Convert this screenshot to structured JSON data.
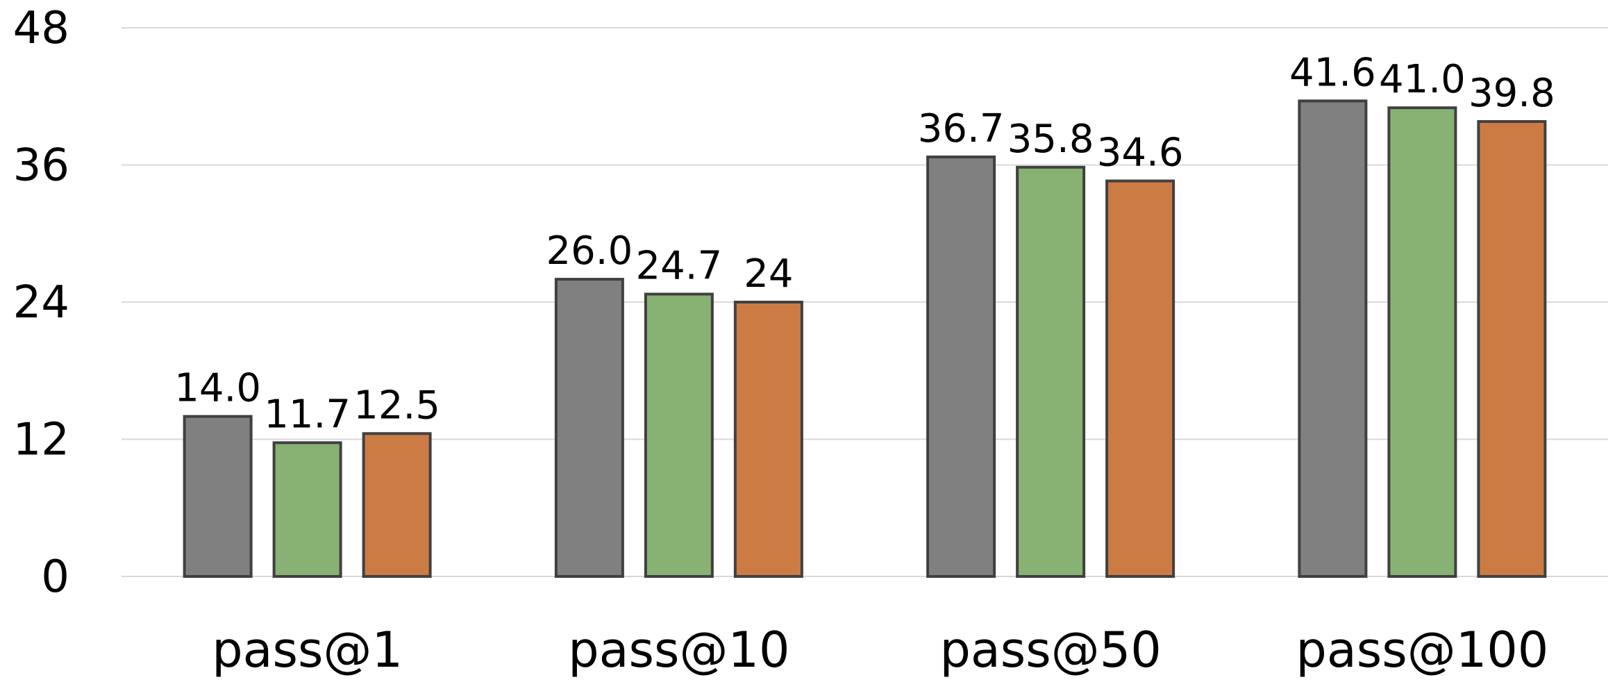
{
  "chart_data": {
    "type": "bar",
    "title": "",
    "xlabel": "",
    "ylabel": "",
    "categories": [
      "pass@1",
      "pass@10",
      "pass@50",
      "pass@100"
    ],
    "series": [
      {
        "values": [
          14.0,
          26.0,
          36.7,
          41.6
        ],
        "labels": [
          "14.0",
          "26.0",
          "36.7",
          "41.6"
        ],
        "color": "#808080"
      },
      {
        "values": [
          11.7,
          24.7,
          35.8,
          41.0
        ],
        "labels": [
          "11.7",
          "24.7",
          "35.8",
          "41.0"
        ],
        "color": "#88B174"
      },
      {
        "values": [
          12.5,
          24.0,
          34.6,
          39.8
        ],
        "labels": [
          "12.5",
          "24",
          "34.6",
          "39.8"
        ],
        "color": "#CD7B45"
      }
    ],
    "ylim": [
      0,
      48
    ],
    "yticks": [
      0,
      12,
      24,
      36,
      48
    ],
    "grid": true,
    "legend": "none"
  }
}
